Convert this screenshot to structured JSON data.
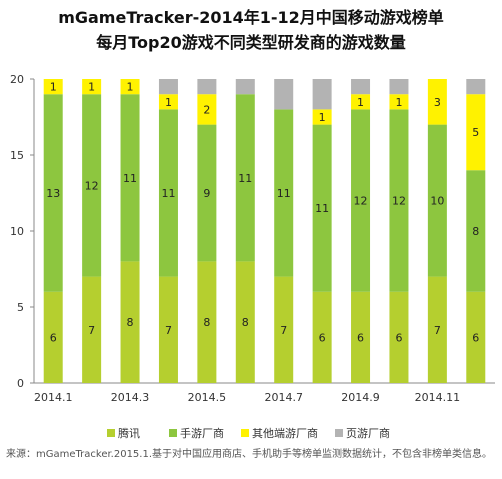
{
  "title": "mGameTracker-2014年1-12月中国移动游戏榜单",
  "subtitle": "每月Top20游戏不同类型研发商的游戏数量",
  "source_note": "来源：mGameTracker.2015.1.基于对中国应用商店、手机助手等榜单监测数据统计，不包含非榜单类信息。",
  "chart_data": {
    "type": "bar",
    "stacked": true,
    "categories": [
      "2014.1",
      "2014.2",
      "2014.3",
      "2014.4",
      "2014.5",
      "2014.6",
      "2014.7",
      "2014.8",
      "2014.9",
      "2014.10",
      "2014.11",
      "2014.12"
    ],
    "x_tick_labels": [
      "2014.1",
      "",
      "2014.3",
      "",
      "2014.5",
      "",
      "2014.7",
      "",
      "2014.9",
      "",
      "2014.11",
      ""
    ],
    "ylim": [
      0,
      20
    ],
    "yticks": [
      0,
      5,
      10,
      15,
      20
    ],
    "grid": false,
    "legend_position": "bottom",
    "series": [
      {
        "name": "腾讯",
        "color": "#b5cf2f",
        "values": [
          6,
          7,
          8,
          7,
          8,
          8,
          7,
          6,
          6,
          6,
          7,
          6
        ],
        "labels_shown": [
          true,
          true,
          true,
          true,
          true,
          true,
          true,
          true,
          true,
          true,
          true,
          true
        ]
      },
      {
        "name": "手游厂商",
        "color": "#8dc63f",
        "values": [
          13,
          12,
          11,
          11,
          9,
          11,
          11,
          11,
          12,
          12,
          10,
          8
        ],
        "labels_shown": [
          true,
          true,
          true,
          true,
          true,
          true,
          true,
          true,
          true,
          true,
          true,
          true
        ]
      },
      {
        "name": "其他端游厂商",
        "color": "#fff200",
        "values": [
          1,
          1,
          1,
          1,
          2,
          0,
          0,
          1,
          1,
          1,
          3,
          5
        ],
        "labels_shown": [
          true,
          true,
          true,
          true,
          true,
          false,
          false,
          true,
          true,
          true,
          true,
          true
        ]
      },
      {
        "name": "页游厂商",
        "color": "#b3b3b3",
        "values": [
          0,
          0,
          0,
          1,
          1,
          1,
          2,
          2,
          1,
          1,
          0,
          1
        ],
        "labels_shown": [
          false,
          false,
          false,
          false,
          false,
          false,
          false,
          false,
          false,
          false,
          false,
          false
        ]
      }
    ]
  }
}
